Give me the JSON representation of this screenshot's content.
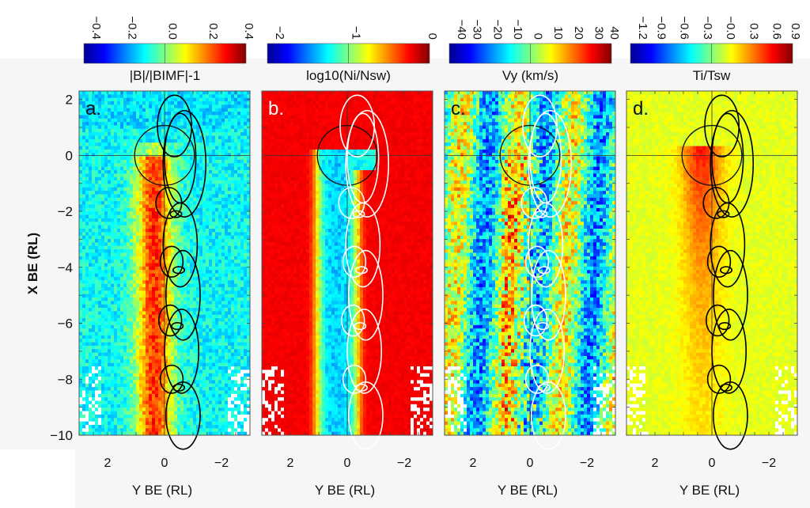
{
  "chart_data": [
    {
      "type": "heatmap",
      "panel_label": "a.",
      "colorbar": {
        "label": "|B|/|BIMF|-1",
        "ticks": [
          "-0.4",
          "-0.2",
          "0.0",
          "0.2",
          "0.4"
        ],
        "range": [
          -0.4,
          0.4
        ]
      },
      "colormap": "jet",
      "overlay_color": "#000000",
      "xlabel": "Y BE (RL)",
      "ylabel": "X BE (RL)",
      "xticks": [
        "2",
        "0",
        "-2"
      ],
      "yticks": [
        "2",
        "0",
        "-2",
        "-4",
        "-6",
        "-8",
        "-10"
      ],
      "xlim": [
        3,
        -3
      ],
      "ylim": [
        -10,
        2.3
      ],
      "description": "Enhanced field (yellow/red, ~0.2-0.4) band near Y 0 to 1 trailing the body; background ~-0.1 (cyan/blue)"
    },
    {
      "type": "heatmap",
      "panel_label": "b.",
      "colorbar": {
        "label": "log10(Ni/Nsw)",
        "ticks": [
          "-2",
          "-1",
          "0"
        ],
        "range": [
          -2,
          0
        ]
      },
      "colormap": "jet",
      "overlay_color": "#ffffff",
      "xlabel": "Y BE (RL)",
      "xticks": [
        "2",
        "0",
        "-2"
      ],
      "xlim": [
        3,
        -3
      ],
      "ylim": [
        -10,
        2.3
      ],
      "description": "Density wake (blue ~-1.5) behind body from X=0 to -10 at Y 0 to 1; background ~0 (dark red)"
    },
    {
      "type": "heatmap",
      "panel_label": "c.",
      "colorbar": {
        "label": "Vy (km/s)",
        "ticks": [
          "-40",
          "-30",
          "-20",
          "-10",
          "0",
          "10",
          "20",
          "30",
          "40"
        ],
        "range": [
          -40,
          40
        ]
      },
      "colormap": "jet",
      "overlay_color": "#ffffff",
      "xlabel": "Y BE (RL)",
      "xticks": [
        "2",
        "0",
        "-2"
      ],
      "xlim": [
        3,
        -3
      ],
      "ylim": [
        -10,
        2.3
      ],
      "description": "Noisy Vy structure; positive (red) streak near Y 0 in wake, negative (blue) streaks flanking"
    },
    {
      "type": "heatmap",
      "panel_label": "d.",
      "colorbar": {
        "label": "Ti/Tsw",
        "ticks": [
          "-1.2",
          "-0.9",
          "-0.6",
          "-0.3",
          "-0.0",
          "0.3",
          "0.6",
          "0.9"
        ],
        "range": [
          -1.2,
          0.9
        ]
      },
      "colormap": "jet",
      "overlay_color": "#000000",
      "xlabel": "Y BE (RL)",
      "xticks": [
        "2",
        "0",
        "-2"
      ],
      "xlim": [
        3,
        -3
      ],
      "ylim": [
        -10,
        2.3
      ],
      "description": "Heated region (orange/red ~0.5) in wake just behind body, background ~0.1 (yellow-green)"
    }
  ]
}
